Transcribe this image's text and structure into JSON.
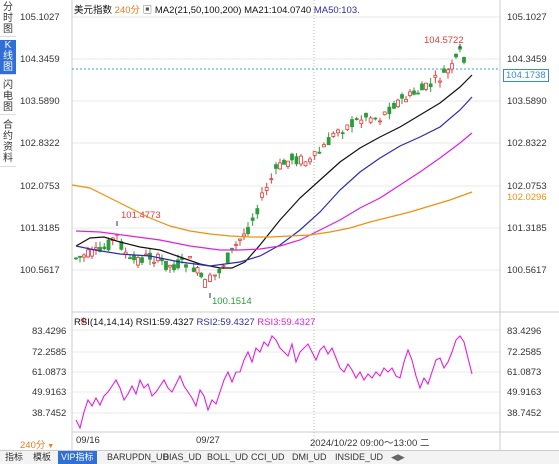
{
  "side_tabs": [
    "分时图",
    "K线图",
    "闪电图",
    "合约资料"
  ],
  "header": {
    "symbol": "美元指数",
    "period": "240分",
    "ma_main": "MA2(21,50,100,200)",
    "ma21": "MA21:104.0740",
    "ma50": "MA50:103."
  },
  "price_axis": [
    "105.1027",
    "104.3459",
    "103.5890",
    "102.8322",
    "102.0753",
    "101.3185",
    "100.5617"
  ],
  "price_markers": {
    "current": "104.1738",
    "ma_level": "102.0296"
  },
  "annotations": {
    "high": "104.5722",
    "left_high": "101.4773",
    "low": "100.1514"
  },
  "rsi": {
    "label": "RSI(14,14,14)",
    "rsi1": "RSI1:59.4327",
    "rsi2": "RSI2:59.4327",
    "rsi3": "RSI3:59.4327",
    "axis": [
      "83.4296",
      "72.2585",
      "61.0873",
      "49.9163",
      "38.7452"
    ]
  },
  "x_axis": {
    "left_date": "09/16",
    "mid_date": "09/27",
    "crosshair_time": "2024/10/22 09:00～13:00 二"
  },
  "period_button": "240分",
  "bottom_tabs": [
    "指标",
    "模板",
    "VIP指标",
    "BARUPDN_UD",
    "BIAS_UD",
    "BOLL_UD",
    "CCI_UD",
    "DMI_UD",
    "INSIDE_UD"
  ],
  "colors": {
    "up": "#e23b3b",
    "down": "#2a9d3a",
    "ma_black": "#111111",
    "ma_blue": "#2b2bb0",
    "ma_magenta": "#e020e0",
    "ma_orange": "#f09010",
    "rsi": "#e020e0",
    "accent": "#2f6fd6"
  }
}
